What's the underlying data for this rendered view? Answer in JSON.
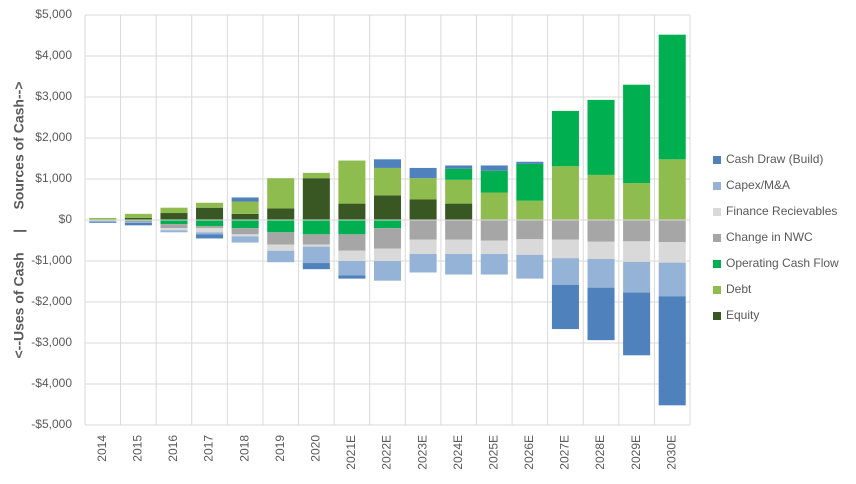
{
  "chart_data": {
    "type": "stacked-bar",
    "y_label": "<--Uses of Cash     |     Sources of Cash-->",
    "categories": [
      "2014",
      "2015",
      "2016",
      "2017",
      "2018",
      "2019",
      "2020",
      "2021E",
      "2022E",
      "2023E",
      "2024E",
      "2025E",
      "2026E",
      "2027E",
      "2028E",
      "2029E",
      "2030E"
    ],
    "series": [
      {
        "name": "Equity",
        "color": "#385723",
        "values": [
          0,
          50,
          170,
          300,
          150,
          280,
          1020,
          400,
          600,
          500,
          400,
          0,
          0,
          0,
          0,
          0,
          0
        ]
      },
      {
        "name": "Debt",
        "color": "#8fbc4f",
        "values": [
          50,
          100,
          130,
          120,
          300,
          740,
          130,
          1050,
          670,
          520,
          580,
          670,
          470,
          1310,
          1100,
          900,
          1480
        ]
      },
      {
        "name": "Operating Cash Flow",
        "color": "#00b050",
        "values": [
          0,
          -20,
          -100,
          -150,
          -200,
          -300,
          -350,
          -350,
          -200,
          0,
          270,
          530,
          900,
          1350,
          1830,
          2400,
          3040
        ]
      },
      {
        "name": "Change in NWC",
        "color": "#a6a6a6",
        "values": [
          -20,
          -30,
          -100,
          -50,
          -150,
          -300,
          -250,
          -400,
          -500,
          -480,
          -480,
          -500,
          -470,
          -480,
          -530,
          -520,
          -540
        ]
      },
      {
        "name": "Finance Recievables",
        "color": "#d9d9d9",
        "values": [
          0,
          0,
          -50,
          -100,
          -50,
          -150,
          -50,
          -250,
          -300,
          -350,
          -350,
          -330,
          -380,
          -450,
          -420,
          -500,
          -500
        ]
      },
      {
        "name": "Capex/M&A",
        "color": "#95b3d7",
        "values": [
          -30,
          -20,
          -50,
          -50,
          -150,
          -280,
          -400,
          -350,
          -480,
          -450,
          -500,
          -500,
          -580,
          -650,
          -700,
          -750,
          -820
        ]
      },
      {
        "name": "Cash Draw (Build)",
        "color": "#4f81bd",
        "values": [
          -20,
          -60,
          0,
          -100,
          100,
          0,
          -150,
          -80,
          210,
          250,
          80,
          130,
          50,
          -1080,
          -1280,
          -1530,
          -2660
        ]
      }
    ],
    "ylim": [
      -5000,
      5000
    ],
    "yticks": [
      {
        "value": -5000,
        "label": "-$5,000"
      },
      {
        "value": -4000,
        "label": "-$4,000"
      },
      {
        "value": -3000,
        "label": "-$3,000"
      },
      {
        "value": -2000,
        "label": "-$2,000"
      },
      {
        "value": -1000,
        "label": "-$1,000"
      },
      {
        "value": 0,
        "label": "$0"
      },
      {
        "value": 1000,
        "label": "$1,000"
      },
      {
        "value": 2000,
        "label": "$2,000"
      },
      {
        "value": 3000,
        "label": "$3,000"
      },
      {
        "value": 4000,
        "label": "$4,000"
      },
      {
        "value": 5000,
        "label": "$5,000"
      }
    ],
    "grid": true,
    "legend": "right"
  }
}
